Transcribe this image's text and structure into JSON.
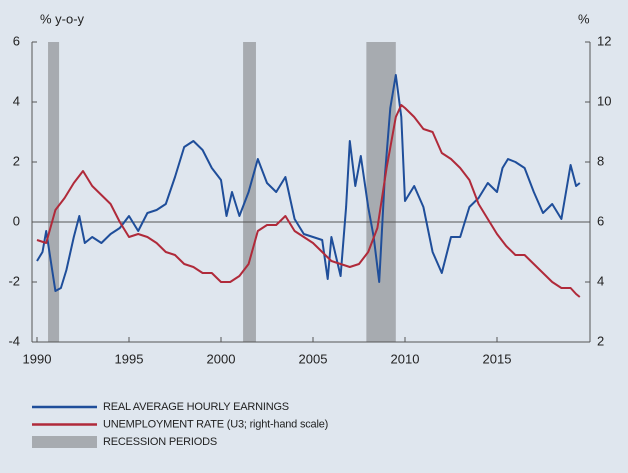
{
  "chart_data": {
    "type": "line",
    "y_label": "% y-o-y",
    "y2_label": "%",
    "xlim": [
      1990,
      2020
    ],
    "xticks": [
      1990,
      1995,
      2000,
      2005,
      2010,
      2015
    ],
    "ylim": [
      -4,
      6
    ],
    "yticks": [
      -4,
      -2,
      0,
      2,
      4,
      6
    ],
    "y2lim": [
      2,
      12
    ],
    "y2ticks": [
      2,
      4,
      6,
      8,
      10,
      12
    ],
    "recessions": {
      "name": "RECESSION PERIODS",
      "color": "#a7abb0",
      "periods": [
        [
          1990.6,
          1991.2
        ],
        [
          2001.2,
          2001.9
        ],
        [
          2007.9,
          2009.5
        ]
      ]
    },
    "series": [
      {
        "name": "REAL AVERAGE HOURLY EARNINGS",
        "color": "#1f4e9a",
        "x": [
          1990,
          1990.3,
          1990.5,
          1990.8,
          1991,
          1991.3,
          1991.6,
          1992,
          1992.3,
          1992.6,
          1993,
          1993.5,
          1994,
          1994.5,
          1995,
          1995.5,
          1996,
          1996.5,
          1997,
          1997.5,
          1998,
          1998.5,
          1999,
          1999.5,
          2000,
          2000.3,
          2000.6,
          2001,
          2001.5,
          2002,
          2002.5,
          2003,
          2003.5,
          2004,
          2004.5,
          2005,
          2005.5,
          2005.8,
          2006,
          2006.5,
          2006.8,
          2007,
          2007.3,
          2007.6,
          2008,
          2008.3,
          2008.6,
          2008.9,
          2009.2,
          2009.5,
          2009.8,
          2010,
          2010.5,
          2011,
          2011.5,
          2012,
          2012.5,
          2013,
          2013.5,
          2014,
          2014.5,
          2015,
          2015.3,
          2015.6,
          2016,
          2016.5,
          2017,
          2017.5,
          2018,
          2018.5,
          2019,
          2019.3,
          2019.5
        ],
        "values": [
          -1.3,
          -1.0,
          -0.3,
          -1.5,
          -2.3,
          -2.2,
          -1.6,
          -0.5,
          0.2,
          -0.7,
          -0.5,
          -0.7,
          -0.4,
          -0.2,
          0.2,
          -0.3,
          0.3,
          0.4,
          0.6,
          1.5,
          2.5,
          2.7,
          2.4,
          1.8,
          1.4,
          0.2,
          1.0,
          0.2,
          1.0,
          2.1,
          1.3,
          1.0,
          1.5,
          0.1,
          -0.4,
          -0.5,
          -0.6,
          -1.9,
          -0.5,
          -1.8,
          0.5,
          2.7,
          1.2,
          2.2,
          0.5,
          -0.5,
          -2.0,
          1.5,
          3.8,
          4.9,
          3.5,
          0.7,
          1.2,
          0.5,
          -1.0,
          -1.7,
          -0.5,
          -0.5,
          0.5,
          0.8,
          1.3,
          1.0,
          1.8,
          2.1,
          2.0,
          1.8,
          1.0,
          0.3,
          0.6,
          0.1,
          1.9,
          1.2,
          1.3
        ]
      },
      {
        "name": "UNEMPLOYMENT RATE (U3; right-hand scale)",
        "color": "#b02a3a",
        "axis": "y2",
        "x": [
          1990,
          1990.5,
          1991,
          1991.5,
          1992,
          1992.5,
          1993,
          1993.5,
          1994,
          1994.5,
          1995,
          1995.5,
          1996,
          1996.5,
          1997,
          1997.5,
          1998,
          1998.5,
          1999,
          1999.5,
          2000,
          2000.5,
          2001,
          2001.5,
          2002,
          2002.5,
          2003,
          2003.5,
          2004,
          2004.5,
          2005,
          2005.5,
          2006,
          2006.5,
          2007,
          2007.5,
          2008,
          2008.5,
          2009,
          2009.5,
          2009.8,
          2010,
          2010.5,
          2011,
          2011.5,
          2012,
          2012.5,
          2013,
          2013.5,
          2014,
          2014.5,
          2015,
          2015.5,
          2016,
          2016.5,
          2017,
          2017.5,
          2018,
          2018.5,
          2019,
          2019.3,
          2019.5
        ],
        "values": [
          5.4,
          5.3,
          6.4,
          6.8,
          7.3,
          7.7,
          7.2,
          6.9,
          6.6,
          6.0,
          5.5,
          5.6,
          5.5,
          5.3,
          5.0,
          4.9,
          4.6,
          4.5,
          4.3,
          4.3,
          4.0,
          4.0,
          4.2,
          4.6,
          5.7,
          5.9,
          5.9,
          6.2,
          5.7,
          5.5,
          5.3,
          5.0,
          4.7,
          4.6,
          4.5,
          4.6,
          5.0,
          5.8,
          7.8,
          9.5,
          9.9,
          9.8,
          9.5,
          9.1,
          9.0,
          8.3,
          8.1,
          7.8,
          7.4,
          6.6,
          6.1,
          5.6,
          5.2,
          4.9,
          4.9,
          4.6,
          4.3,
          4.0,
          3.8,
          3.8,
          3.6,
          3.5
        ]
      }
    ]
  }
}
